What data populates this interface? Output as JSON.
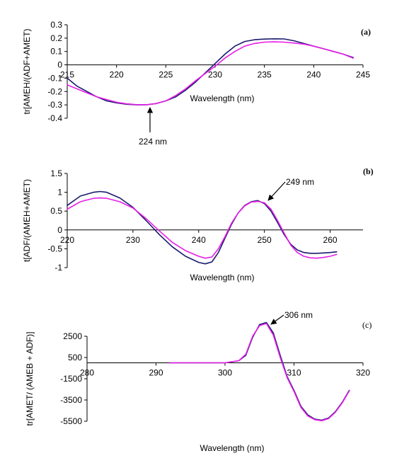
{
  "chart_data": [
    {
      "type": "line",
      "panel_label": "(a)",
      "title": "",
      "xlabel": "Wavelength (nm)",
      "ylabel": "tr[AMEH/(ADF+AMET)",
      "xlim": [
        215,
        245
      ],
      "ylim": [
        -0.4,
        0.3
      ],
      "xticks": [
        "215",
        "220",
        "225",
        "230",
        "235",
        "240",
        "245"
      ],
      "yticks": [
        "-0.4",
        "-0.3",
        "-0.2",
        "-0.1",
        "0",
        "0.1",
        "0.2",
        "0.3"
      ],
      "annotation": {
        "text": "224 nm",
        "x": 223,
        "y": -0.3
      },
      "colors": [
        "#1a1a6e",
        "#e81ee8"
      ],
      "series": [
        {
          "x": [
            215,
            216,
            217,
            218,
            219,
            220,
            221,
            222,
            223,
            224,
            225,
            226,
            227,
            228,
            229,
            230,
            231,
            232,
            233,
            234,
            235,
            236,
            237,
            238,
            239,
            240,
            241,
            242,
            243,
            244
          ],
          "y": [
            -0.1,
            -0.16,
            -0.2,
            -0.24,
            -0.27,
            -0.285,
            -0.295,
            -0.3,
            -0.3,
            -0.29,
            -0.27,
            -0.24,
            -0.19,
            -0.13,
            -0.06,
            0.01,
            0.08,
            0.14,
            0.175,
            0.188,
            0.193,
            0.195,
            0.194,
            0.18,
            0.16,
            0.14,
            0.12,
            0.1,
            0.08,
            0.055
          ]
        },
        {
          "x": [
            215,
            216,
            217,
            218,
            219,
            220,
            221,
            222,
            223,
            224,
            225,
            226,
            227,
            228,
            229,
            230,
            231,
            232,
            233,
            234,
            235,
            236,
            237,
            238,
            239,
            240,
            241,
            242,
            243,
            244
          ],
          "y": [
            -0.15,
            -0.18,
            -0.21,
            -0.24,
            -0.26,
            -0.28,
            -0.292,
            -0.298,
            -0.3,
            -0.29,
            -0.27,
            -0.23,
            -0.18,
            -0.12,
            -0.065,
            -0.01,
            0.05,
            0.1,
            0.14,
            0.16,
            0.17,
            0.172,
            0.17,
            0.163,
            0.155,
            0.14,
            0.12,
            0.1,
            0.08,
            0.05
          ]
        }
      ]
    },
    {
      "type": "line",
      "panel_label": "(b)",
      "title": "",
      "xlabel": "Wavelength (nm)",
      "ylabel": "t[ADF/(AMEH+AMET)",
      "xlim": [
        220,
        265
      ],
      "ylim": [
        -1,
        1.5
      ],
      "xticks": [
        "220",
        "230",
        "240",
        "250",
        "260"
      ],
      "yticks": [
        "-1",
        "-0.5",
        "0",
        "0.5",
        "1",
        "1.5"
      ],
      "annotation": {
        "text": "249 nm",
        "x": 249,
        "y": 0.75
      },
      "colors": [
        "#1a1a6e",
        "#e81ee8"
      ],
      "series": [
        {
          "x": [
            220,
            222,
            224,
            225,
            226,
            228,
            230,
            232,
            234,
            236,
            238,
            240,
            241,
            242,
            243,
            244,
            245,
            246,
            247,
            248,
            249,
            250,
            251,
            252,
            253,
            254,
            255,
            256,
            257,
            258,
            259,
            260,
            261
          ],
          "y": [
            0.65,
            0.9,
            1.0,
            1.02,
            1.0,
            0.85,
            0.6,
            0.25,
            -0.12,
            -0.45,
            -0.7,
            -0.86,
            -0.9,
            -0.85,
            -0.6,
            -0.22,
            0.15,
            0.45,
            0.65,
            0.75,
            0.78,
            0.7,
            0.5,
            0.2,
            -0.12,
            -0.38,
            -0.53,
            -0.6,
            -0.62,
            -0.62,
            -0.61,
            -0.6,
            -0.58
          ]
        },
        {
          "x": [
            220,
            222,
            224,
            225,
            226,
            228,
            230,
            232,
            234,
            236,
            238,
            240,
            241,
            242,
            243,
            244,
            245,
            246,
            247,
            248,
            249,
            250,
            251,
            252,
            253,
            254,
            255,
            256,
            257,
            258,
            259,
            260,
            261
          ],
          "y": [
            0.55,
            0.75,
            0.84,
            0.85,
            0.84,
            0.75,
            0.58,
            0.3,
            -0.02,
            -0.33,
            -0.55,
            -0.7,
            -0.75,
            -0.72,
            -0.5,
            -0.18,
            0.18,
            0.45,
            0.64,
            0.74,
            0.76,
            0.72,
            0.55,
            0.25,
            -0.08,
            -0.4,
            -0.6,
            -0.7,
            -0.74,
            -0.75,
            -0.73,
            -0.7,
            -0.65
          ]
        }
      ]
    },
    {
      "type": "line",
      "panel_label": "(c)",
      "title": "",
      "xlabel": "Wavelength (nm)",
      "ylabel": "tr[AMET/ (AMEB + ADF)]",
      "xlim": [
        280,
        320
      ],
      "ylim": [
        -5500,
        2500
      ],
      "xticks": [
        "280",
        "290",
        "300",
        "310",
        "320"
      ],
      "yticks": [
        "-5500",
        "-3500",
        "-1500",
        "500",
        "2500"
      ],
      "annotation": {
        "text": "306 nm",
        "x": 306,
        "y": 3800
      },
      "colors": [
        "#1a1a6e",
        "#e81ee8"
      ],
      "series": [
        {
          "x": [
            292,
            294,
            296,
            298,
            300,
            302,
            303,
            304,
            305,
            306,
            307,
            308,
            309,
            310,
            311,
            312,
            313,
            314,
            315,
            316,
            317,
            318
          ],
          "y": [
            0,
            0,
            0,
            0,
            0,
            200,
            700,
            2400,
            3600,
            3800,
            2800,
            700,
            -1300,
            -2600,
            -4100,
            -4900,
            -5300,
            -5400,
            -5200,
            -4600,
            -3700,
            -2600
          ]
        },
        {
          "x": [
            292,
            294,
            296,
            298,
            300,
            302,
            303,
            304,
            305,
            306,
            307,
            308,
            309,
            310,
            311,
            312,
            313,
            314,
            315,
            316,
            317,
            318
          ],
          "y": [
            0,
            0,
            0,
            0,
            0,
            200,
            800,
            2500,
            3500,
            3700,
            2600,
            500,
            -1400,
            -2700,
            -4200,
            -5000,
            -5350,
            -5450,
            -5250,
            -4650,
            -3750,
            -2650
          ]
        }
      ]
    }
  ]
}
